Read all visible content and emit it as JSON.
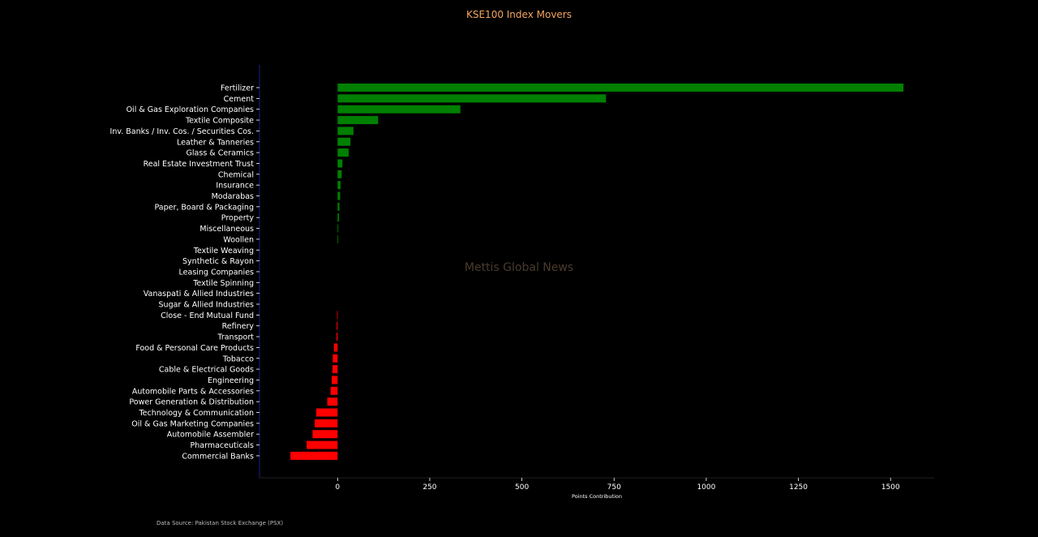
{
  "chart_data": {
    "type": "bar",
    "orientation": "horizontal",
    "title": "KSE100 Index Movers",
    "xlabel": "Points Contribution",
    "ylabel": "",
    "xlim": [
      -210,
      1610
    ],
    "xticks": [
      0,
      250,
      500,
      750,
      1000,
      1250,
      1500
    ],
    "grid": false,
    "watermark": "Mettis Global News",
    "source": "Data Source: Pakistan Stock Exchange (PSX)",
    "colors": {
      "background": "#000000",
      "positive": "#008000",
      "negative": "#ff0000",
      "title": "#f4a460",
      "text": "#ffffff",
      "left_spine": "#1e1e8c",
      "bottom_spine": "#202028",
      "watermark": "#4a3a2c"
    },
    "categories": [
      "Fertilizer",
      "Cement",
      "Oil & Gas Exploration Companies",
      "Textile Composite",
      "Inv. Banks / Inv. Cos. / Securities Cos.",
      "Leather & Tanneries",
      "Glass & Ceramics",
      "Real Estate Investment Trust",
      "Chemical",
      "Insurance",
      "Modarabas",
      "Paper, Board & Packaging",
      "Property",
      "Miscellaneous",
      "Woollen",
      "Textile Weaving",
      "Synthetic & Rayon",
      "Leasing Companies",
      "Textile Spinning",
      "Vanaspati & Allied Industries",
      "Sugar & Allied Industries",
      "Close - End Mutual Fund",
      "Refinery",
      "Transport",
      "Food & Personal Care Products",
      "Tobacco",
      "Cable & Electrical Goods",
      "Engineering",
      "Automobile Parts & Accessories",
      "Power Generation & Distribution",
      "Technology & Communication",
      "Oil & Gas Marketing Companies",
      "Automobile Assembler",
      "Pharmaceuticals",
      "Commercial Banks"
    ],
    "values": [
      1535,
      728,
      333,
      110,
      43,
      35,
      30,
      13,
      11,
      8,
      7,
      5,
      4,
      2,
      1.5,
      0,
      0,
      0,
      0,
      0,
      0,
      -1.5,
      -2.5,
      -3,
      -10,
      -13,
      -14,
      -16,
      -19,
      -28,
      -58,
      -62,
      -68,
      -84,
      -128
    ]
  }
}
